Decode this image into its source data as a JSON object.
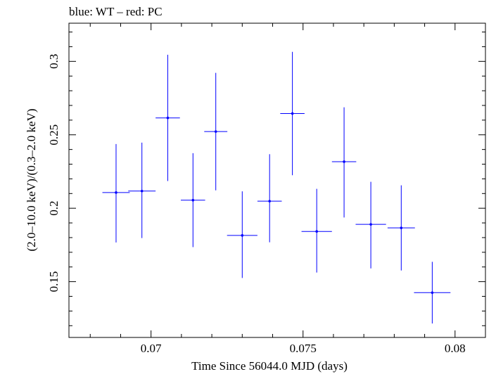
{
  "chart_data": {
    "type": "scatter",
    "title": "blue: WT – red: PC",
    "xlabel": "Time Since 56044.0 MJD (days)",
    "ylabel": "(2.0–10.0 keV)/(0.3–2.0 keV)",
    "xlim": [
      0.0673,
      0.081
    ],
    "ylim": [
      0.112,
      0.326
    ],
    "x_ticks": [
      0.07,
      0.075,
      0.08
    ],
    "x_tick_labels": [
      "0.07",
      "0.075",
      "0.08"
    ],
    "y_ticks": [
      0.15,
      0.2,
      0.25,
      0.3
    ],
    "y_tick_labels": [
      "0.15",
      "0.2",
      "0.25",
      "0.3"
    ],
    "series": [
      {
        "name": "WT",
        "color": "#0000ff",
        "points": [
          {
            "x": 0.06885,
            "xerr": 0.00045,
            "y": 0.2107,
            "yerr_lo": 0.034,
            "yerr_hi": 0.033
          },
          {
            "x": 0.0697,
            "xerr": 0.00045,
            "y": 0.2117,
            "yerr_lo": 0.032,
            "yerr_hi": 0.033
          },
          {
            "x": 0.07055,
            "xerr": 0.0004,
            "y": 0.2615,
            "yerr_lo": 0.043,
            "yerr_hi": 0.043
          },
          {
            "x": 0.07138,
            "xerr": 0.0004,
            "y": 0.2055,
            "yerr_lo": 0.032,
            "yerr_hi": 0.032
          },
          {
            "x": 0.07213,
            "xerr": 0.00038,
            "y": 0.2522,
            "yerr_lo": 0.04,
            "yerr_hi": 0.04
          },
          {
            "x": 0.073,
            "xerr": 0.0005,
            "y": 0.1815,
            "yerr_lo": 0.029,
            "yerr_hi": 0.03
          },
          {
            "x": 0.0739,
            "xerr": 0.0004,
            "y": 0.2048,
            "yerr_lo": 0.028,
            "yerr_hi": 0.032
          },
          {
            "x": 0.07465,
            "xerr": 0.0004,
            "y": 0.2645,
            "yerr_lo": 0.042,
            "yerr_hi": 0.042
          },
          {
            "x": 0.07545,
            "xerr": 0.0005,
            "y": 0.1842,
            "yerr_lo": 0.028,
            "yerr_hi": 0.029
          },
          {
            "x": 0.07635,
            "xerr": 0.0004,
            "y": 0.2317,
            "yerr_lo": 0.038,
            "yerr_hi": 0.037
          },
          {
            "x": 0.07723,
            "xerr": 0.0005,
            "y": 0.189,
            "yerr_lo": 0.03,
            "yerr_hi": 0.029
          },
          {
            "x": 0.07823,
            "xerr": 0.00045,
            "y": 0.1866,
            "yerr_lo": 0.029,
            "yerr_hi": 0.029
          },
          {
            "x": 0.07925,
            "xerr": 0.0006,
            "y": 0.1425,
            "yerr_lo": 0.021,
            "yerr_hi": 0.021
          }
        ]
      }
    ]
  }
}
